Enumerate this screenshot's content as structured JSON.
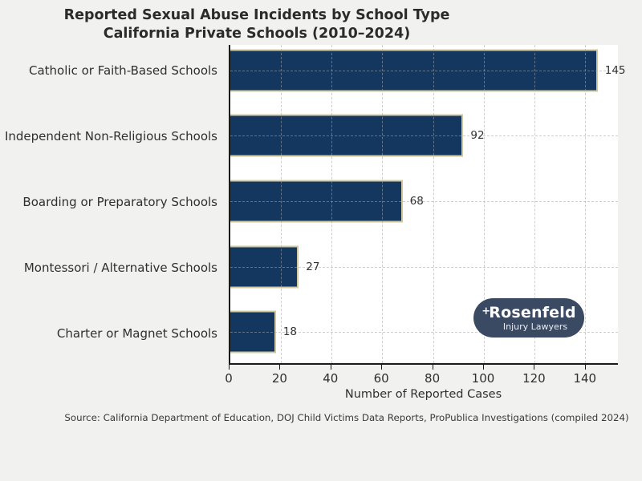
{
  "title": {
    "line1": "Reported Sexual Abuse Incidents by School Type",
    "line2": "California Private Schools (2010–2024)"
  },
  "chart_data": {
    "type": "bar",
    "orientation": "horizontal",
    "categories": [
      "Catholic or Faith-Based Schools",
      "Independent Non-Religious Schools",
      "Boarding or Preparatory Schools",
      "Montessori / Alternative Schools",
      "Charter or Magnet Schools"
    ],
    "values": [
      145,
      92,
      68,
      27,
      18
    ],
    "value_labels": [
      "145",
      "92",
      "68",
      "27",
      "18"
    ],
    "xlabel": "Number of Reported Cases",
    "xticks": [
      0,
      20,
      40,
      60,
      80,
      100,
      120,
      140
    ],
    "xlim": [
      0,
      153
    ],
    "grid": "dashed",
    "legend": "none",
    "bar_color": "#14375f",
    "bar_edge_color": "#cfc8a0",
    "plot_background": "#ffffff",
    "figure_background": "#f1f1ef"
  },
  "source": {
    "text": "Source: California Department of Education, DOJ Child Victims Data Reports, ProPublica Investigations (compiled 2024)"
  },
  "logo": {
    "plus_symbol": "+",
    "name": "Rosenfeld",
    "tagline": "Injury Lawyers",
    "bg_color": "#3b4a63"
  }
}
